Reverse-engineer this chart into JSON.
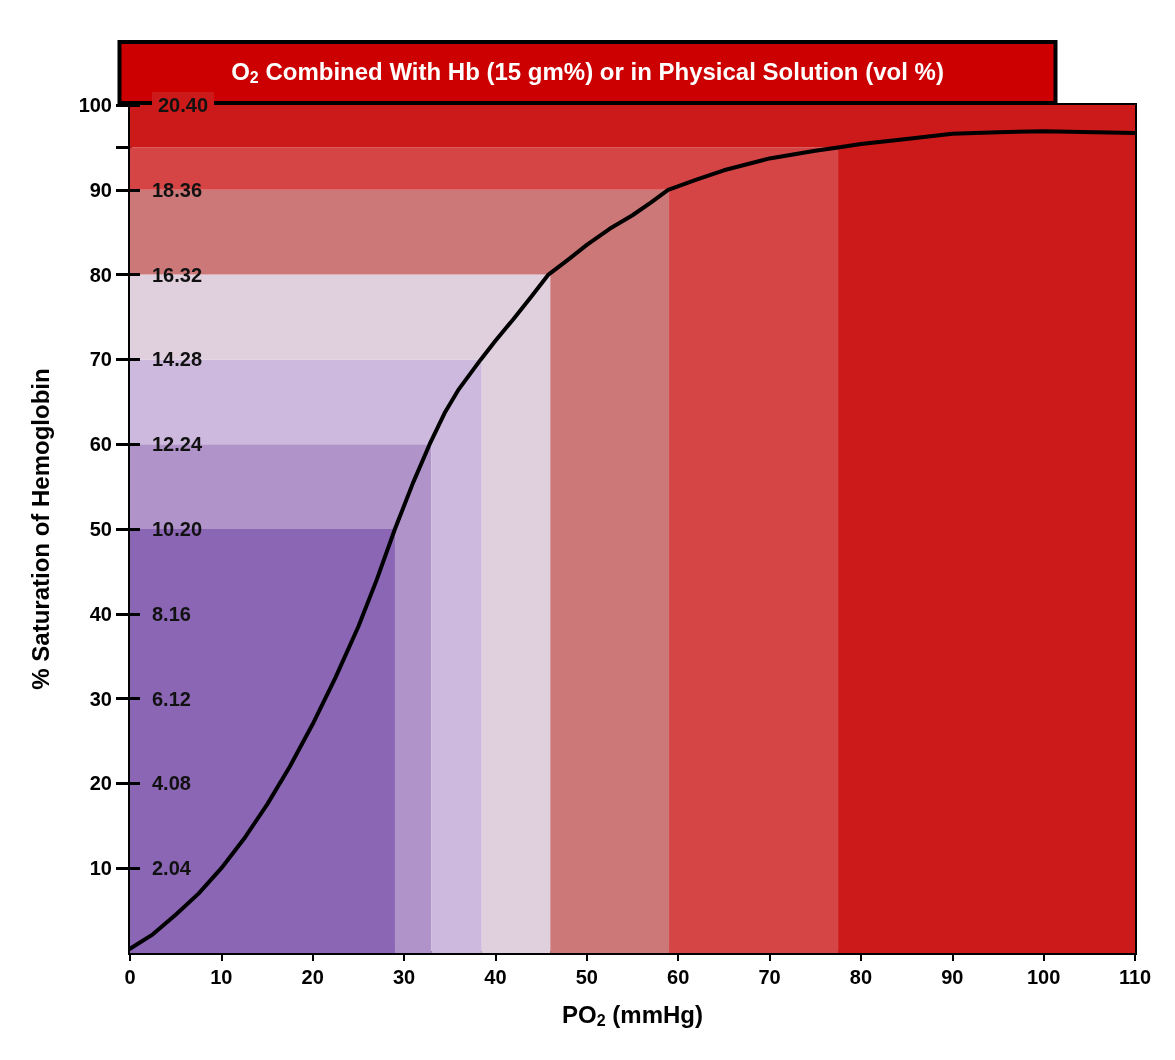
{
  "chart_data": {
    "type": "line",
    "title": "O$_{2}$ Combined With Hb (15 gm%) or in Physical Solution (vol %)",
    "xlabel": "PO$_{2}$ (mmHg)",
    "ylabel": "% Saturation of Hemoglobin",
    "xlim": [
      0,
      110
    ],
    "xticks": [
      0,
      10,
      20,
      30,
      40,
      50,
      60,
      70,
      80,
      90,
      100,
      110
    ],
    "ylim": [
      0,
      100
    ],
    "yticks": [
      10,
      20,
      30,
      40,
      50,
      60,
      70,
      80,
      90,
      {
        "value": 95,
        "label": null
      },
      100
    ],
    "y2lim": [
      0,
      20.4
    ],
    "y2ticks": [
      2.04,
      4.08,
      6.12,
      8.16,
      {
        "value": 10.2,
        "label": "10.20"
      },
      12.24,
      14.28,
      16.32,
      18.36,
      {
        "value": 20.4,
        "label": "20.40"
      }
    ],
    "grid": false,
    "stacked": true,
    "marker": "none",
    "line_style": "solid",
    "series": [
      {
        "type": "area",
        "color": "#8b66b5",
        "x": [
          0,
          29,
          29,
          33,
          33,
          38.5,
          38.5,
          46,
          46,
          59,
          59,
          77.5,
          77.5,
          110
        ],
        "values": [
          50,
          50,
          0,
          0,
          0,
          0,
          0,
          0,
          0,
          0,
          0,
          0,
          0,
          0
        ]
      },
      {
        "type": "area",
        "color": "#b093c9",
        "x": [
          0,
          29,
          29,
          33,
          33,
          38.5,
          38.5,
          46,
          46,
          59,
          59,
          77.5,
          77.5,
          110
        ],
        "values": [
          10,
          10,
          60,
          60,
          0,
          0,
          0,
          0,
          0,
          0,
          0,
          0,
          0,
          0
        ]
      },
      {
        "type": "area",
        "color": "#cdb9dd",
        "x": [
          0,
          29,
          29,
          33,
          33,
          38.5,
          38.5,
          46,
          46,
          59,
          59,
          77.5,
          77.5,
          110
        ],
        "values": [
          10,
          10,
          10,
          10,
          70,
          70,
          0,
          0,
          0,
          0,
          0,
          0,
          0,
          0
        ]
      },
      {
        "type": "area",
        "color": "#e0cfdd",
        "x": [
          0,
          29,
          29,
          33,
          33,
          38.5,
          38.5,
          46,
          46,
          59,
          59,
          77.5,
          77.5,
          110
        ],
        "values": [
          10,
          10,
          10,
          10,
          10,
          10,
          80,
          80,
          0,
          0,
          0,
          0,
          0,
          0
        ]
      },
      {
        "type": "area",
        "color": "#cc7878",
        "x": [
          0,
          29,
          29,
          33,
          33,
          38.5,
          38.5,
          46,
          46,
          59,
          59,
          77.5,
          77.5,
          110
        ],
        "values": [
          10,
          10,
          10,
          10,
          10,
          10,
          10,
          10,
          90,
          90,
          0,
          0,
          0,
          0
        ]
      },
      {
        "type": "area",
        "color": "#d64545",
        "x": [
          0,
          29,
          29,
          33,
          33,
          38.5,
          38.5,
          46,
          46,
          59,
          59,
          77.5,
          77.5,
          110
        ],
        "values": [
          5,
          5,
          5,
          5,
          5,
          5,
          5,
          5,
          5,
          5,
          95,
          95,
          0,
          0
        ]
      },
      {
        "type": "area",
        "color": "#cc1a1a",
        "x": [
          0,
          29,
          29,
          33,
          33,
          38.5,
          38.5,
          46,
          46,
          59,
          59,
          77.5,
          77.5,
          110
        ],
        "values": [
          5,
          5,
          5,
          5,
          5,
          5,
          5,
          5,
          5,
          5,
          5,
          5,
          100,
          100
        ]
      },
      {
        "color": "#000000",
        "x": [
          0,
          2.5,
          5,
          7.5,
          10,
          12.5,
          15,
          17.5,
          20,
          22.5,
          25,
          27,
          29,
          31,
          32.8,
          34.5,
          36,
          38.4,
          40,
          42,
          44,
          45.8,
          48,
          50,
          52.5,
          55,
          57,
          58.9,
          62,
          65,
          70,
          75,
          77.5,
          80,
          85,
          90,
          95,
          100,
          110
        ],
        "values": [
          0.5,
          2.2,
          4.5,
          7,
          10,
          13.5,
          17.5,
          22,
          27,
          32.5,
          38.5,
          44,
          50,
          55.5,
          60,
          63.8,
          66.5,
          70,
          72.2,
          74.8,
          77.5,
          80,
          81.8,
          83.5,
          85.4,
          87,
          88.5,
          90,
          91.2,
          92.3,
          93.7,
          94.6,
          95,
          95.4,
          96,
          96.6,
          96.8,
          96.9,
          96.7
        ]
      }
    ]
  }
}
